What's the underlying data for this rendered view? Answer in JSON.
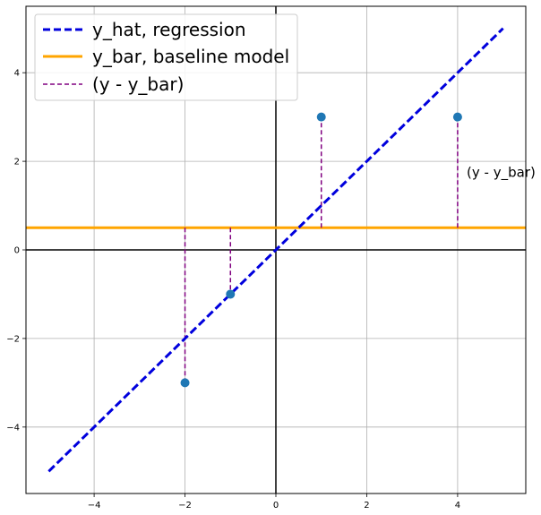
{
  "chart_data": {
    "type": "line",
    "title": "",
    "xlabel": "",
    "ylabel": "",
    "xlim": [
      -5.5,
      5.5
    ],
    "ylim": [
      -5.5,
      5.5
    ],
    "grid": true,
    "legend_position": "top-left",
    "x_ticks": [
      -4,
      -2,
      0,
      2,
      4
    ],
    "y_ticks": [
      -4,
      -2,
      0,
      2,
      4
    ],
    "x_tick_labels": [
      "−4",
      "−2",
      "0",
      "2",
      "4"
    ],
    "y_tick_labels": [
      "−4",
      "−2",
      "0",
      "2",
      "4"
    ],
    "points": {
      "x": [
        -2,
        -1,
        1,
        4
      ],
      "y": [
        -3,
        -1,
        3,
        3
      ],
      "color": "#1f77b4"
    },
    "series": [
      {
        "name": "y_hat, regression",
        "kind": "line",
        "style": "dashed",
        "color": "#0000dd",
        "x": [
          -5,
          5
        ],
        "y": [
          -5,
          5
        ]
      },
      {
        "name": "y_bar, baseline model",
        "kind": "hline",
        "style": "solid",
        "color": "#ffa500",
        "y": 0.5
      },
      {
        "name": "(y - y_bar)",
        "kind": "residuals",
        "style": "dashed",
        "color": "#800080"
      }
    ],
    "annotation": {
      "text": "(y - y_bar)",
      "x": 4.2,
      "y": 1.75
    }
  }
}
